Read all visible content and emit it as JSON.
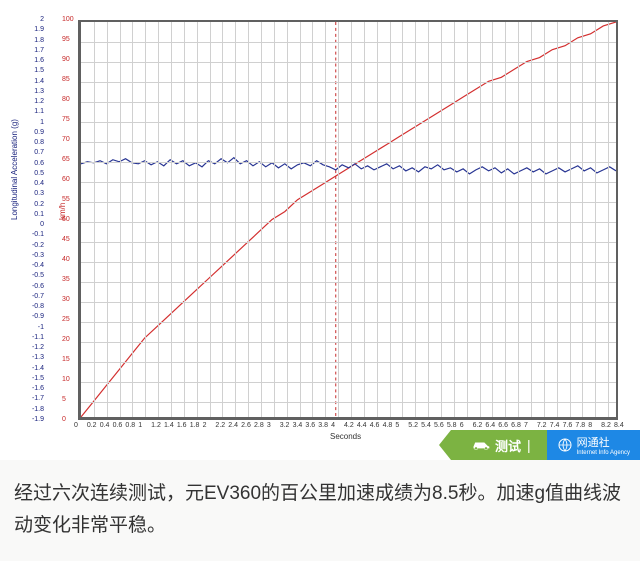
{
  "chart": {
    "type": "line",
    "background_color": "#ffffff",
    "grid_color": "#d0d0d0",
    "border_color": "#606060",
    "x": {
      "title": "Seconds",
      "min": 0,
      "max": 8.4,
      "tick_step": 0.2,
      "labels": [
        "0",
        "0.2",
        "0.4",
        "0.6",
        "0.8",
        "1",
        "1.2",
        "1.4",
        "1.6",
        "1.8",
        "2",
        "2.2",
        "2.4",
        "2.6",
        "2.8",
        "3",
        "3.2",
        "3.4",
        "3.6",
        "3.8",
        "4",
        "4.2",
        "4.4",
        "4.6",
        "4.8",
        "5",
        "5.2",
        "5.4",
        "5.6",
        "5.8",
        "6",
        "6.2",
        "6.4",
        "6.6",
        "6.8",
        "7",
        "7.2",
        "7.4",
        "7.6",
        "7.8",
        "8",
        "8.2",
        "8.4"
      ],
      "label_fontsize": 7
    },
    "y_left": {
      "title": "Longitudinal Acceleration (g)",
      "title_color": "#1a237e",
      "min": -1.9,
      "max": 2.0,
      "tick_step": 0.1,
      "labels": [
        "2",
        "1.9",
        "1.8",
        "1.7",
        "1.6",
        "1.5",
        "1.4",
        "1.3",
        "1.2",
        "1.1",
        "1",
        "0.9",
        "0.8",
        "0.7",
        "0.6",
        "0.5",
        "0.4",
        "0.3",
        "0.2",
        "0.1",
        "0",
        "-0.1",
        "-0.2",
        "-0.3",
        "-0.4",
        "-0.5",
        "-0.6",
        "-0.7",
        "-0.8",
        "-0.9",
        "-1",
        "-1.1",
        "-1.2",
        "-1.3",
        "-1.4",
        "-1.5",
        "-1.6",
        "-1.7",
        "-1.8",
        "-1.9"
      ],
      "label_color": "#1a237e",
      "label_fontsize": 7
    },
    "y_right": {
      "title": "km/h",
      "title_color": "#c62828",
      "min": 0,
      "max": 100,
      "tick_step": 5,
      "labels": [
        "100",
        "95",
        "90",
        "85",
        "80",
        "75",
        "70",
        "65",
        "60",
        "55",
        "50",
        "45",
        "40",
        "35",
        "30",
        "25",
        "20",
        "15",
        "10",
        "5",
        "0"
      ],
      "label_color": "#c62828",
      "label_fontsize": 7
    },
    "marker_x": 4.0,
    "marker_color": "#c62828",
    "series": [
      {
        "name": "speed",
        "axis": "right",
        "color": "#d32f2f",
        "line_width": 1.2,
        "points": [
          [
            0,
            0
          ],
          [
            0.2,
            4
          ],
          [
            0.4,
            8
          ],
          [
            0.6,
            12
          ],
          [
            0.8,
            16
          ],
          [
            1.0,
            20
          ],
          [
            1.2,
            23
          ],
          [
            1.4,
            26
          ],
          [
            1.6,
            29
          ],
          [
            1.8,
            32
          ],
          [
            2.0,
            35
          ],
          [
            2.2,
            38
          ],
          [
            2.4,
            41
          ],
          [
            2.6,
            44
          ],
          [
            2.8,
            47
          ],
          [
            3.0,
            50
          ],
          [
            3.2,
            52
          ],
          [
            3.4,
            55
          ],
          [
            3.6,
            57
          ],
          [
            3.8,
            59
          ],
          [
            4.0,
            61
          ],
          [
            4.2,
            63
          ],
          [
            4.4,
            65
          ],
          [
            4.6,
            67
          ],
          [
            4.8,
            69
          ],
          [
            5.0,
            71
          ],
          [
            5.2,
            73
          ],
          [
            5.4,
            75
          ],
          [
            5.6,
            77
          ],
          [
            5.8,
            79
          ],
          [
            6.0,
            81
          ],
          [
            6.2,
            83
          ],
          [
            6.4,
            85
          ],
          [
            6.6,
            86
          ],
          [
            6.8,
            88
          ],
          [
            7.0,
            90
          ],
          [
            7.2,
            91
          ],
          [
            7.4,
            93
          ],
          [
            7.6,
            94
          ],
          [
            7.8,
            96
          ],
          [
            8.0,
            97
          ],
          [
            8.2,
            99
          ],
          [
            8.4,
            100
          ]
        ]
      },
      {
        "name": "accel",
        "axis": "left",
        "color": "#283593",
        "line_width": 1.2,
        "points": [
          [
            0,
            0.6
          ],
          [
            0.1,
            0.62
          ],
          [
            0.2,
            0.61
          ],
          [
            0.3,
            0.63
          ],
          [
            0.4,
            0.6
          ],
          [
            0.5,
            0.64
          ],
          [
            0.6,
            0.62
          ],
          [
            0.7,
            0.65
          ],
          [
            0.8,
            0.61
          ],
          [
            0.9,
            0.6
          ],
          [
            1.0,
            0.63
          ],
          [
            1.1,
            0.59
          ],
          [
            1.2,
            0.62
          ],
          [
            1.3,
            0.58
          ],
          [
            1.4,
            0.64
          ],
          [
            1.5,
            0.6
          ],
          [
            1.6,
            0.63
          ],
          [
            1.7,
            0.58
          ],
          [
            1.8,
            0.61
          ],
          [
            1.9,
            0.57
          ],
          [
            2.0,
            0.63
          ],
          [
            2.1,
            0.6
          ],
          [
            2.2,
            0.65
          ],
          [
            2.3,
            0.61
          ],
          [
            2.4,
            0.66
          ],
          [
            2.5,
            0.6
          ],
          [
            2.6,
            0.63
          ],
          [
            2.7,
            0.58
          ],
          [
            2.8,
            0.62
          ],
          [
            2.9,
            0.57
          ],
          [
            3.0,
            0.61
          ],
          [
            3.1,
            0.56
          ],
          [
            3.2,
            0.6
          ],
          [
            3.3,
            0.55
          ],
          [
            3.4,
            0.59
          ],
          [
            3.5,
            0.61
          ],
          [
            3.6,
            0.58
          ],
          [
            3.7,
            0.63
          ],
          [
            3.8,
            0.59
          ],
          [
            3.9,
            0.57
          ],
          [
            4.0,
            0.54
          ],
          [
            4.1,
            0.59
          ],
          [
            4.2,
            0.56
          ],
          [
            4.3,
            0.6
          ],
          [
            4.4,
            0.55
          ],
          [
            4.5,
            0.58
          ],
          [
            4.6,
            0.54
          ],
          [
            4.7,
            0.57
          ],
          [
            4.8,
            0.6
          ],
          [
            4.9,
            0.55
          ],
          [
            5.0,
            0.58
          ],
          [
            5.1,
            0.53
          ],
          [
            5.2,
            0.56
          ],
          [
            5.3,
            0.52
          ],
          [
            5.4,
            0.57
          ],
          [
            5.5,
            0.55
          ],
          [
            5.6,
            0.59
          ],
          [
            5.7,
            0.54
          ],
          [
            5.8,
            0.56
          ],
          [
            5.9,
            0.52
          ],
          [
            6.0,
            0.55
          ],
          [
            6.1,
            0.5
          ],
          [
            6.2,
            0.54
          ],
          [
            6.3,
            0.57
          ],
          [
            6.4,
            0.53
          ],
          [
            6.5,
            0.56
          ],
          [
            6.6,
            0.51
          ],
          [
            6.7,
            0.55
          ],
          [
            6.8,
            0.5
          ],
          [
            6.9,
            0.53
          ],
          [
            7.0,
            0.56
          ],
          [
            7.1,
            0.52
          ],
          [
            7.2,
            0.55
          ],
          [
            7.3,
            0.5
          ],
          [
            7.4,
            0.53
          ],
          [
            7.5,
            0.56
          ],
          [
            7.6,
            0.52
          ],
          [
            7.7,
            0.55
          ],
          [
            7.8,
            0.58
          ],
          [
            7.9,
            0.53
          ],
          [
            8.0,
            0.56
          ],
          [
            8.1,
            0.51
          ],
          [
            8.2,
            0.54
          ],
          [
            8.3,
            0.57
          ],
          [
            8.4,
            0.53
          ]
        ]
      }
    ]
  },
  "badge": {
    "green_text": "测试",
    "blue_text": "网通社",
    "blue_sub": "Internet Info Agency",
    "green_bg": "#7cb342",
    "blue_bg": "#1e88e5"
  },
  "caption": "经过六次连续测试，元EV360的百公里加速成绩为8.5秒。加速g值曲线波动变化非常平稳。"
}
